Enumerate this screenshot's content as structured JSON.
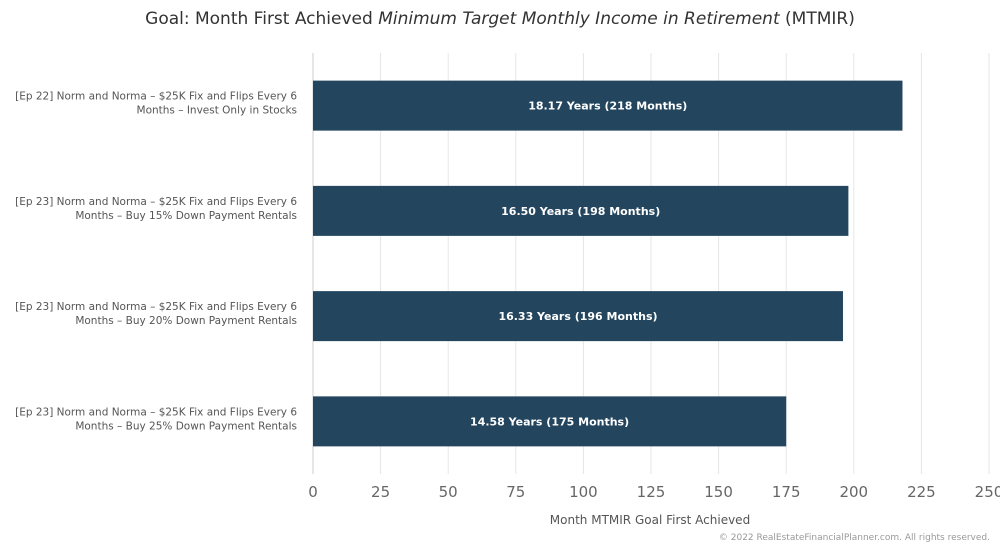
{
  "chart_data": {
    "type": "bar",
    "orientation": "horizontal",
    "title_parts": [
      {
        "text": "Goal: Month First Achieved ",
        "italic": false
      },
      {
        "text": "Minimum Target Monthly Income in Retirement",
        "italic": true
      },
      {
        "text": " (MTMIR)",
        "italic": false
      }
    ],
    "categories": [
      [
        "[Ep 22] Norm and Norma – $25K Fix and Flips Every 6",
        "Months – Invest Only in Stocks"
      ],
      [
        "[Ep 23] Norm and Norma – $25K Fix and Flips Every 6",
        "Months – Buy 15% Down Payment Rentals"
      ],
      [
        "[Ep 23] Norm and Norma – $25K Fix and Flips Every 6",
        "Months – Buy 20% Down Payment Rentals"
      ],
      [
        "[Ep 23] Norm and Norma – $25K Fix and Flips Every 6",
        "Months – Buy 25% Down Payment Rentals"
      ]
    ],
    "values": [
      218,
      198,
      196,
      175
    ],
    "data_labels": [
      "18.17 Years (218 Months)",
      "16.50 Years (198 Months)",
      "16.33 Years (196 Months)",
      "14.58 Years (175 Months)"
    ],
    "xlabel": "Month MTMIR Goal First Achieved",
    "xlim": [
      0,
      250
    ],
    "xticks": [
      0,
      25,
      50,
      75,
      100,
      125,
      150,
      175,
      200,
      225,
      250
    ],
    "grid": true,
    "bar_color": "#23455e",
    "grid_color": "#e6e6e6",
    "credit": "© 2022 RealEstateFinancialPlanner.com. All rights reserved."
  }
}
